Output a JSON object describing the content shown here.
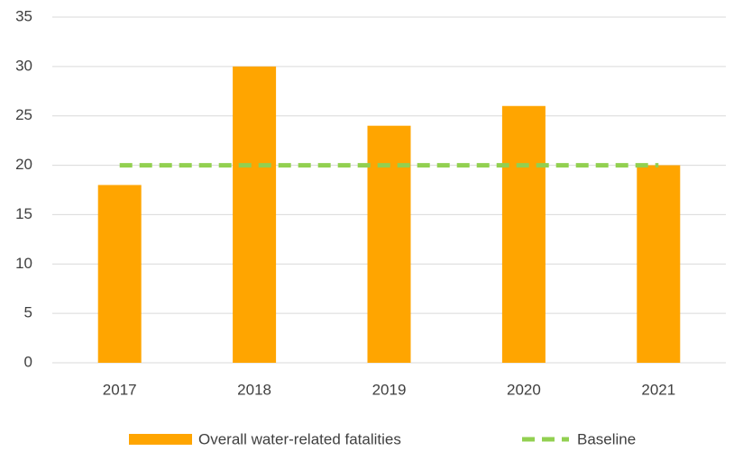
{
  "chart_data": {
    "type": "bar",
    "categories": [
      "2017",
      "2018",
      "2019",
      "2020",
      "2021"
    ],
    "series": [
      {
        "name": "Overall water-related fatalities",
        "type": "bar",
        "color": "#ffa500",
        "values": [
          18,
          30,
          24,
          26,
          20
        ]
      },
      {
        "name": "Baseline",
        "type": "line",
        "dashed": true,
        "color": "#92d050",
        "values": [
          20,
          20,
          20,
          20,
          20
        ]
      }
    ],
    "ylim": [
      0,
      35
    ],
    "yticks": [
      0,
      5,
      10,
      15,
      20,
      25,
      30,
      35
    ],
    "grid": true,
    "legend": "bottom"
  }
}
